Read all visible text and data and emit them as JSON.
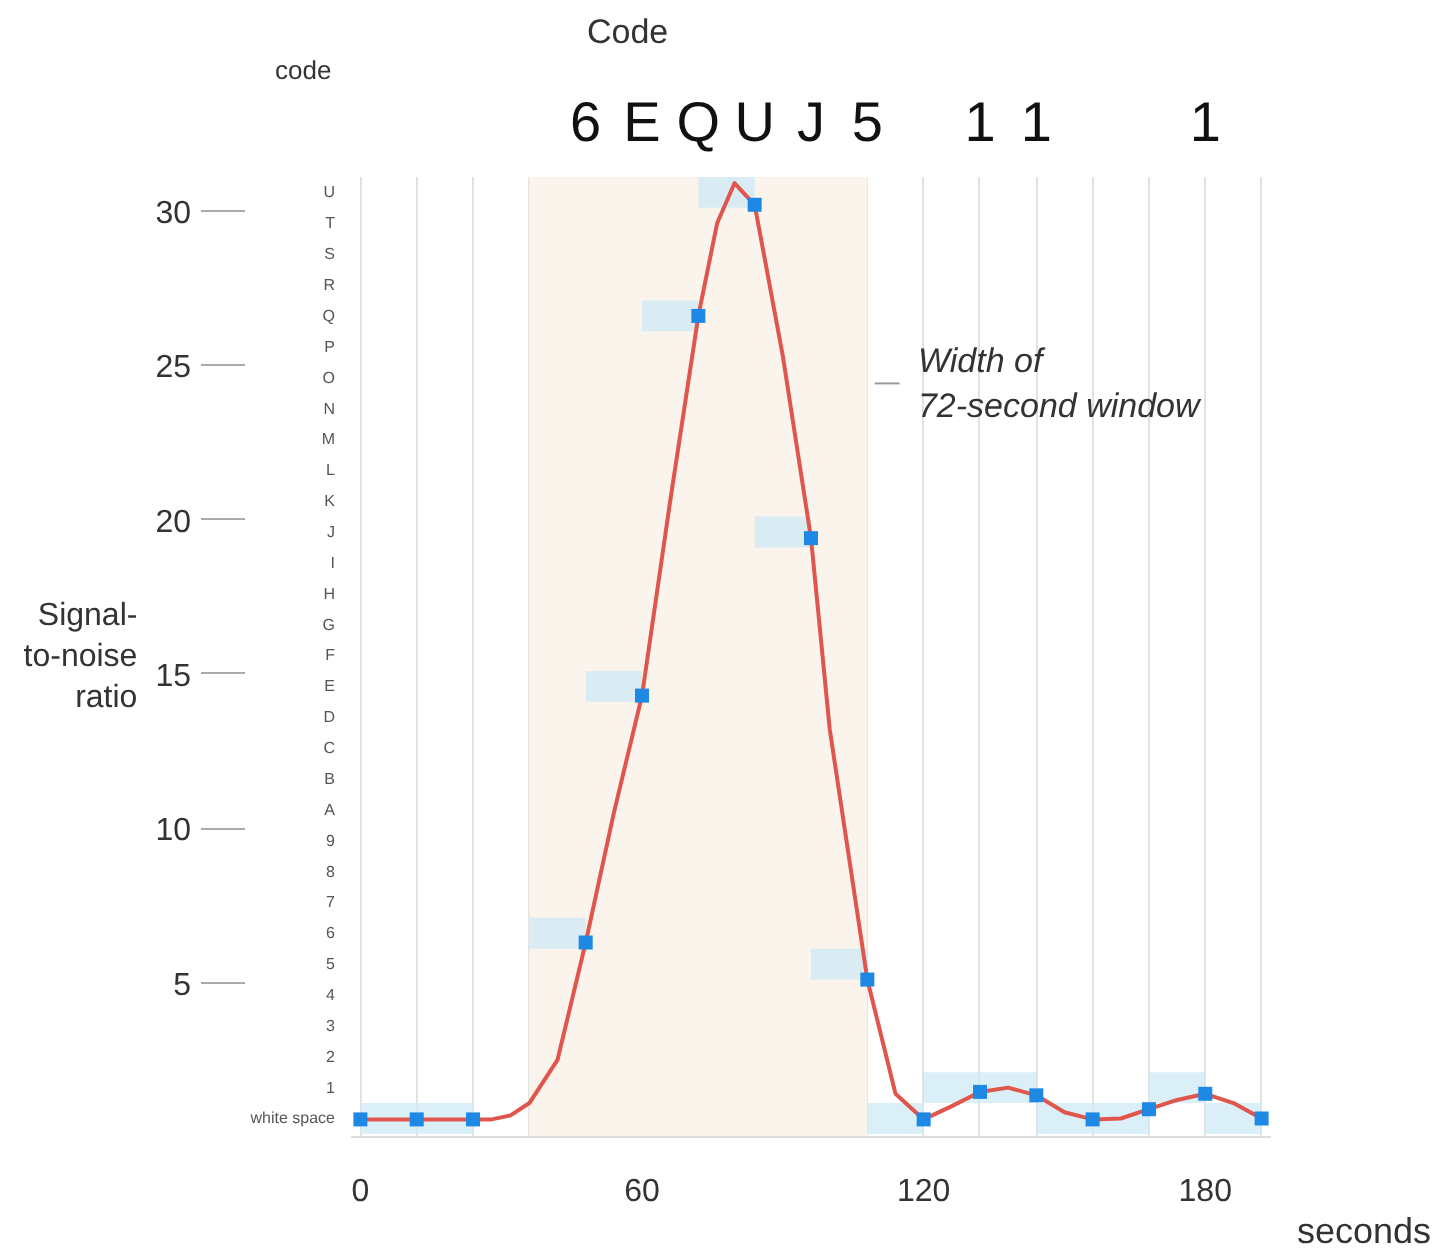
{
  "chart_data": {
    "type": "line",
    "xlabel": "seconds",
    "ylabel": "Signal-to-noise ratio",
    "y2label": "code",
    "x2label": "Code",
    "xlim": [
      -2,
      194
    ],
    "xticks": [
      0,
      {
        "value": 12,
        "label": null
      },
      {
        "value": 24,
        "label": null
      },
      {
        "value": 36,
        "label": null
      },
      {
        "value": 48,
        "label": null
      },
      60,
      {
        "value": 72,
        "label": null
      },
      {
        "value": 84,
        "label": null
      },
      {
        "value": 96,
        "label": null
      },
      {
        "value": 108,
        "label": null
      },
      120,
      {
        "value": 132,
        "label": null
      },
      {
        "value": 144,
        "label": null
      },
      {
        "value": 156,
        "label": null
      },
      {
        "value": 168,
        "label": null
      },
      180,
      {
        "value": 192,
        "label": null
      }
    ],
    "ylim": [
      0,
      31.1
    ],
    "yticks": [
      5,
      10,
      15,
      20,
      25,
      30
    ],
    "y2lim": [
      -0.6,
      30.5
    ],
    "y2ticks": [
      {
        "value": 0,
        "label": "white space"
      },
      {
        "value": 1,
        "label": "1"
      },
      {
        "value": 2,
        "label": "2"
      },
      {
        "value": 3,
        "label": "3"
      },
      {
        "value": 4,
        "label": "4"
      },
      {
        "value": 5,
        "label": "5"
      },
      {
        "value": 6,
        "label": "6"
      },
      {
        "value": 7,
        "label": "7"
      },
      {
        "value": 8,
        "label": "8"
      },
      {
        "value": 9,
        "label": "9"
      },
      {
        "value": 10,
        "label": "A"
      },
      {
        "value": 11,
        "label": "B"
      },
      {
        "value": 12,
        "label": "C"
      },
      {
        "value": 13,
        "label": "D"
      },
      {
        "value": 14,
        "label": "E"
      },
      {
        "value": 15,
        "label": "F"
      },
      {
        "value": 16,
        "label": "G"
      },
      {
        "value": 17,
        "label": "H"
      },
      {
        "value": 18,
        "label": "I"
      },
      {
        "value": 19,
        "label": "J"
      },
      {
        "value": 20,
        "label": "K"
      },
      {
        "value": 21,
        "label": "L"
      },
      {
        "value": 22,
        "label": "M"
      },
      {
        "value": 23,
        "label": "N"
      },
      {
        "value": 24,
        "label": "O"
      },
      {
        "value": 25,
        "label": "P"
      },
      {
        "value": 26,
        "label": "Q"
      },
      {
        "value": 27,
        "label": "R"
      },
      {
        "value": 28,
        "label": "S"
      },
      {
        "value": 29,
        "label": "T"
      },
      {
        "value": 30,
        "label": "U"
      }
    ],
    "annotations": [
      "6",
      "E",
      "Q",
      "U",
      "J",
      "5",
      "1",
      "1",
      "1"
    ],
    "grid": "x",
    "line_style": "solid",
    "bands": [
      {
        "axis": "x",
        "from": 36,
        "to": 108,
        "label": "Width of 72-second window",
        "color": "#fbf4ec"
      }
    ],
    "series": [
      {
        "type": "scatter",
        "marker": "square",
        "axis": "y2",
        "color": "#cfe9f5",
        "x": [
          6,
          18,
          42,
          54,
          66,
          78,
          90,
          102,
          114,
          126,
          138,
          150,
          162,
          174,
          186
        ],
        "values": [
          0,
          0,
          6,
          14,
          26,
          30,
          19,
          5,
          0,
          1,
          1,
          0,
          0,
          1,
          0
        ]
      },
      {
        "color": "#e0564c",
        "x": [
          0,
          12,
          24,
          28,
          32,
          36,
          42,
          48,
          54,
          60,
          66,
          72,
          76,
          79.7,
          84,
          90,
          96,
          100,
          108,
          114,
          120,
          126,
          132,
          138,
          144,
          150,
          156,
          162,
          168,
          174,
          180,
          186,
          192
        ],
        "values": [
          0.57,
          0.57,
          0.57,
          0.57,
          0.7,
          1.1,
          2.5,
          6.3,
          10.5,
          14.3,
          20.6,
          26.6,
          29.6,
          30.9,
          30.2,
          25.3,
          19.4,
          13.2,
          5.1,
          1.4,
          0.57,
          1.0,
          1.46,
          1.6,
          1.35,
          0.8,
          0.57,
          0.6,
          0.9,
          1.2,
          1.4,
          1.1,
          0.6
        ]
      },
      {
        "type": "scatter",
        "marker": "square",
        "color": "#1e88e5",
        "x": [
          0,
          12,
          24,
          48,
          60,
          72,
          84,
          96,
          108,
          120,
          132,
          144,
          156,
          168,
          180,
          192
        ],
        "values": [
          0.57,
          0.57,
          0.57,
          6.3,
          14.3,
          26.6,
          30.2,
          19.4,
          5.1,
          0.57,
          1.46,
          1.35,
          0.57,
          0.9,
          1.4,
          0.6
        ]
      }
    ]
  }
}
